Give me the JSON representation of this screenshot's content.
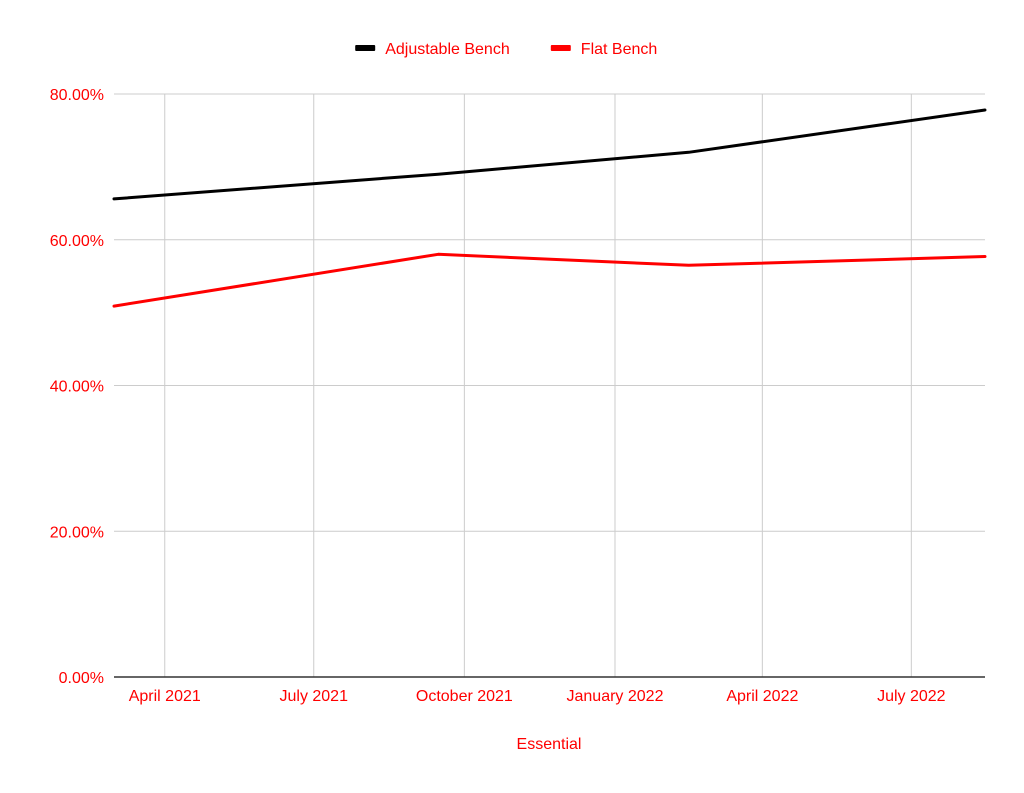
{
  "chart_data": {
    "type": "line",
    "x": [
      "2021-03-01",
      "2021-09-15",
      "2022-02-15",
      "2022-08-15"
    ],
    "series": [
      {
        "name": "Adjustable Bench",
        "color": "#000000",
        "values": [
          65.6,
          69.0,
          72.0,
          77.8
        ],
        "x": [
          "2021-03-01",
          "2021-09-15",
          "2022-02-15",
          "2022-08-15"
        ]
      },
      {
        "name": "Flat Bench",
        "color": "#ff0000",
        "values": [
          50.9,
          58.0,
          56.5,
          57.7
        ],
        "x": [
          "2021-03-01",
          "2021-09-15",
          "2022-02-15",
          "2022-08-15"
        ]
      }
    ],
    "title": "",
    "xlabel": "Essential",
    "ylabel": "",
    "ylim": [
      0,
      80
    ],
    "xlim": [
      "2021-03-01",
      "2022-08-15"
    ],
    "yticks": [
      "0.00%",
      "20.00%",
      "40.00%",
      "60.00%",
      "80.00%"
    ],
    "ytick_values": [
      0,
      20,
      40,
      60,
      80
    ],
    "xticks": [
      "April 2021",
      "July 2021",
      "October 2021",
      "January 2022",
      "April 2022",
      "July 2022"
    ],
    "xtick_values": [
      "2021-04-01",
      "2021-07-01",
      "2021-10-01",
      "2022-01-01",
      "2022-04-01",
      "2022-07-01"
    ],
    "grid": true,
    "legend_position": "top",
    "label_color": "#ff0000",
    "grid_color": "#cccccc"
  }
}
